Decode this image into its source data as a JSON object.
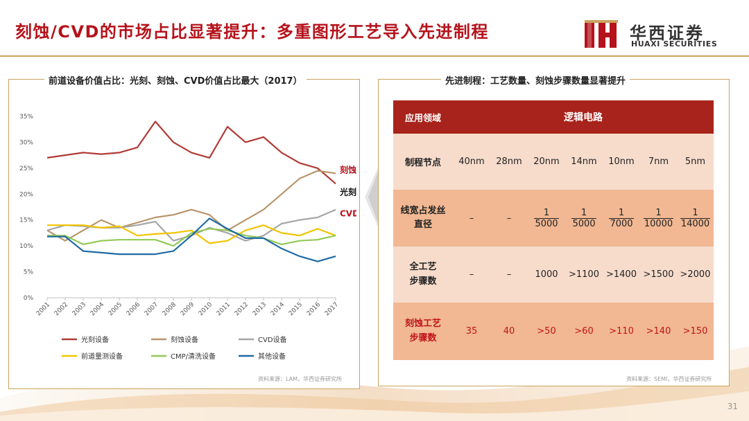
{
  "title": "刻蚀/CVD的市场占比显著提升：多重图形工艺导入先进制程",
  "logo": {
    "cn": "华西证券",
    "en": "HUAXI SECURITIES"
  },
  "page_number": "31",
  "left_panel": {
    "title": "前道设备价值占比：光刻、刻蚀、CVD价值占比最大（2017）",
    "source": "资料来源：LAM，华西证券研究所"
  },
  "right_panel": {
    "title": "先进制程：工艺数量、刻蚀步骤数量显著提升",
    "source": "资料来源：SEMI，华西证券研究所"
  },
  "table": {
    "header": {
      "label": "应用领域",
      "value": "逻辑电路"
    },
    "node_row": {
      "label": "制程节点",
      "cells": [
        "40nm",
        "28nm",
        "20nm",
        "14nm",
        "10nm",
        "7nm",
        "5nm"
      ]
    },
    "hair_row": {
      "label_line1": "线宽占发丝",
      "label_line2": "直径",
      "dash1": "–",
      "dash2": "–",
      "numerator": "1",
      "denominators": [
        "5000",
        "5000",
        "7000",
        "10000",
        "14000"
      ]
    },
    "steps_row": {
      "label_line1": "全工艺",
      "label_line2": "步骤数",
      "cells": [
        "–",
        "–",
        "1000",
        ">1100",
        ">1400",
        ">1500",
        ">2000"
      ]
    },
    "etch_row": {
      "label_line1": "刻蚀工艺",
      "label_line2": "步骤数",
      "cells": [
        "35",
        "40",
        ">50",
        ">60",
        ">110",
        ">140",
        ">150"
      ]
    }
  },
  "colors": {
    "brand_red": "#b5121b",
    "header_red": "#a8231b",
    "row_light": "#f7dccc",
    "row_dark": "#f1b893",
    "gold": "#c9a35e"
  },
  "chart_data": {
    "type": "line",
    "title": "前道设备价值占比：光刻、刻蚀、CVD价值占比最大（2017）",
    "xlabel": "",
    "ylabel": "",
    "ylim": [
      0,
      35
    ],
    "y_ticks": [
      "0%",
      "5%",
      "10%",
      "15%",
      "20%",
      "25%",
      "30%",
      "35%"
    ],
    "categories": [
      "2001",
      "2002",
      "2003",
      "2004",
      "2005",
      "2006",
      "2007",
      "2008",
      "2009",
      "2010",
      "2011",
      "2012",
      "2013",
      "2014",
      "2015",
      "2016",
      "2017"
    ],
    "series": [
      {
        "name": "光刻设备",
        "color": "#b03a35",
        "values": [
          27,
          27.5,
          28,
          27.7,
          28,
          29,
          34,
          30,
          28,
          27,
          33,
          30,
          31,
          28,
          26,
          25,
          22
        ]
      },
      {
        "name": "刻蚀设备",
        "color": "#b8956a",
        "values": [
          13,
          11,
          13,
          15,
          13.5,
          14.5,
          15.5,
          16,
          17,
          16,
          13,
          15,
          17,
          20,
          23,
          24.5,
          24
        ]
      },
      {
        "name": "CVD设备",
        "color": "#a6a6a6",
        "values": [
          13,
          14,
          13.8,
          13.5,
          13.5,
          14,
          14.7,
          11,
          12,
          13.5,
          12.5,
          11,
          12,
          14.3,
          15,
          15.5,
          17
        ]
      },
      {
        "name": "前道量测设备",
        "color": "#f2c400",
        "values": [
          14,
          14,
          14,
          13.5,
          13.8,
          12,
          12.3,
          12.5,
          13,
          10.5,
          11,
          13,
          14,
          12.5,
          12,
          13.3,
          12
        ]
      },
      {
        "name": "CMP/清洗设备",
        "color": "#92c955",
        "values": [
          12,
          12,
          10.3,
          11,
          11.2,
          11.2,
          11.2,
          10,
          12.5,
          13.3,
          13,
          12,
          11.5,
          10.3,
          11,
          11.2,
          12
        ]
      },
      {
        "name": "其他设备",
        "color": "#1f6aa5",
        "values": [
          11.8,
          11.8,
          9,
          8.7,
          8.4,
          8.4,
          8.4,
          9,
          12,
          15.3,
          13.3,
          11.5,
          11.5,
          9.5,
          8,
          7,
          8
        ]
      }
    ],
    "annotations": [
      {
        "text": "刻蚀",
        "series": "刻蚀设备"
      },
      {
        "text": "光刻",
        "series": "光刻设备"
      },
      {
        "text": "CVD",
        "series": "CVD设备"
      }
    ]
  }
}
